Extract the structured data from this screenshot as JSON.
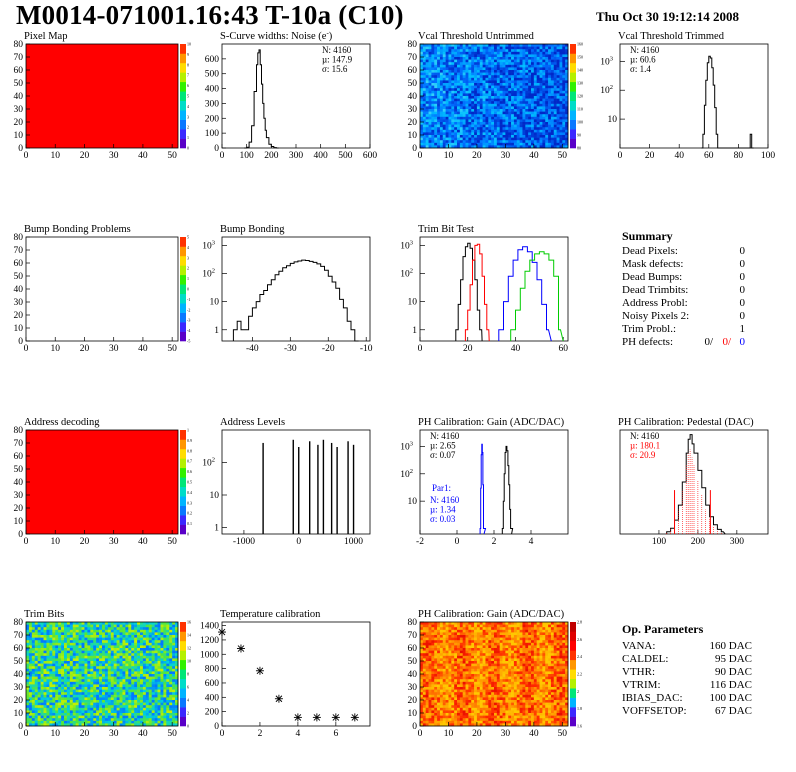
{
  "header": {
    "title": "M0014-071001.16:43 T-10a (C10)",
    "date": "Thu Oct 30 19:12:14 2008"
  },
  "colors": {
    "red": "#ff0000",
    "blue": "#0000ff",
    "green": "#00cc00",
    "black": "#000000"
  },
  "chart_data": [
    {
      "id": "pixel-map",
      "type": "heatmap",
      "title": "Pixel Map",
      "xlim": [
        0,
        52
      ],
      "ylim": [
        0,
        80
      ],
      "xticks": [
        0,
        10,
        20,
        30,
        40,
        50
      ],
      "yticks": [
        0,
        10,
        20,
        30,
        40,
        50,
        60,
        70,
        80
      ],
      "zlim": [
        0,
        10
      ],
      "zticks": [
        "0",
        "1",
        "2",
        "3",
        "4",
        "5",
        "6",
        "7",
        "8",
        "9",
        "10"
      ],
      "fill": "uniform-max"
    },
    {
      "id": "scurve",
      "type": "line",
      "title": "S-Curve widths: Noise (e",
      "title_sup": "-",
      "title_end": ")",
      "xlim": [
        0,
        600
      ],
      "ylim": [
        0,
        700
      ],
      "xticks": [
        0,
        100,
        200,
        300,
        400,
        500,
        600
      ],
      "yticks": [
        0,
        100,
        200,
        300,
        400,
        500,
        600
      ],
      "stats": [
        "N: 4160",
        "µ: 147.9",
        "σ: 15.6"
      ],
      "series": [
        {
          "name": "",
          "x": [
            90,
            100,
            110,
            120,
            130,
            140,
            145,
            150,
            155,
            160,
            165,
            170,
            175,
            180,
            190,
            200,
            210,
            220
          ],
          "y": [
            0,
            5,
            40,
            150,
            380,
            560,
            640,
            660,
            560,
            430,
            300,
            200,
            120,
            70,
            25,
            10,
            3,
            0
          ]
        }
      ]
    },
    {
      "id": "vcal-untrimmed",
      "type": "heatmap",
      "title": "Vcal Threshold Untrimmed",
      "xlim": [
        0,
        52
      ],
      "ylim": [
        0,
        80
      ],
      "xticks": [
        0,
        10,
        20,
        30,
        40,
        50
      ],
      "yticks": [
        0,
        10,
        20,
        30,
        40,
        50,
        60,
        70,
        80
      ],
      "zticks": [
        "80",
        "90",
        "100",
        "110",
        "120",
        "130",
        "140",
        "150",
        "160"
      ],
      "fill": "noise-blue"
    },
    {
      "id": "vcal-trimmed",
      "type": "line",
      "title": "Vcal Threshold Trimmed",
      "xlim": [
        0,
        100
      ],
      "log": true,
      "ylim_exp": [
        0,
        3.6
      ],
      "xticks": [
        0,
        20,
        40,
        60,
        80,
        100
      ],
      "yticks_exp": [
        1,
        2,
        3
      ],
      "stats": [
        "N: 4160",
        "µ: 60.6",
        "σ:  1.4"
      ],
      "series": [
        {
          "name": "",
          "x": [
            55,
            56,
            57,
            58,
            59,
            60,
            61,
            62,
            63,
            64,
            65,
            66,
            88,
            89
          ],
          "y": [
            0.4,
            3,
            30,
            220,
            900,
            1500,
            1300,
            600,
            150,
            25,
            3,
            0.4,
            3,
            0.4
          ]
        }
      ]
    },
    {
      "id": "bump-problems",
      "type": "heatmap",
      "title": "Bump Bonding Problems",
      "xlim": [
        0,
        52
      ],
      "ylim": [
        0,
        80
      ],
      "xticks": [
        0,
        10,
        20,
        30,
        40,
        50
      ],
      "yticks": [
        0,
        10,
        20,
        30,
        40,
        50,
        60,
        70,
        80
      ],
      "zticks": [
        "-5",
        "-4",
        "-3",
        "-2",
        "-1",
        "0",
        "1",
        "2",
        "3",
        "4",
        "5"
      ],
      "fill": "empty"
    },
    {
      "id": "bump-bonding",
      "type": "line",
      "title": "Bump Bonding",
      "xlim": [
        -48,
        -9
      ],
      "log": true,
      "ylim_exp": [
        -0.4,
        3.3
      ],
      "xticks": [
        -40,
        -30,
        -20,
        -10
      ],
      "yticks_exp": [
        0,
        1,
        2,
        3
      ],
      "series": [
        {
          "name": "",
          "x": [
            -45,
            -44,
            -43,
            -42,
            -41,
            -40,
            -39,
            -38,
            -37,
            -36,
            -35,
            -34,
            -33,
            -32,
            -31,
            -30,
            -29,
            -28,
            -27,
            -26,
            -25,
            -24,
            -23,
            -22,
            -21,
            -20,
            -19,
            -18,
            -17,
            -16,
            -15,
            -14,
            -13
          ],
          "y": [
            1,
            2,
            1,
            1,
            3,
            6,
            10,
            18,
            25,
            40,
            60,
            90,
            120,
            160,
            190,
            230,
            260,
            280,
            300,
            290,
            270,
            250,
            220,
            180,
            130,
            80,
            50,
            30,
            12,
            6,
            2,
            1,
            0.3
          ]
        }
      ]
    },
    {
      "id": "trim-bit-test",
      "type": "line",
      "title": "Trim Bit Test",
      "xlim": [
        0,
        62
      ],
      "log": true,
      "ylim_exp": [
        -0.4,
        3.3
      ],
      "xticks": [
        0,
        20,
        40,
        60
      ],
      "yticks_exp": [
        0,
        1,
        2,
        3
      ],
      "series": [
        {
          "name": "",
          "color": "#000000",
          "x": [
            15,
            16,
            17,
            18,
            19,
            20,
            21,
            22,
            23,
            24,
            25
          ],
          "y": [
            1,
            8,
            60,
            400,
            900,
            1200,
            800,
            300,
            60,
            5,
            1
          ]
        },
        {
          "name": "",
          "color": "#ff0000",
          "x": [
            19,
            20,
            21,
            22,
            23,
            24,
            25,
            26,
            27,
            28
          ],
          "y": [
            1,
            5,
            40,
            300,
            1000,
            1100,
            500,
            80,
            8,
            1
          ]
        },
        {
          "name": "",
          "color": "#0000ff",
          "x": [
            33,
            35,
            37,
            39,
            41,
            43,
            45,
            47,
            49,
            51,
            53
          ],
          "y": [
            1,
            10,
            80,
            300,
            700,
            900,
            600,
            250,
            60,
            8,
            1
          ]
        },
        {
          "name": "",
          "color": "#00cc00",
          "x": [
            38,
            40,
            42,
            44,
            46,
            48,
            50,
            52,
            54,
            56,
            58
          ],
          "y": [
            1,
            5,
            30,
            120,
            300,
            500,
            600,
            500,
            300,
            80,
            1
          ]
        }
      ]
    },
    {
      "id": "address-decoding",
      "type": "heatmap",
      "title": "Address decoding",
      "xlim": [
        0,
        52
      ],
      "ylim": [
        0,
        80
      ],
      "xticks": [
        0,
        10,
        20,
        30,
        40,
        50
      ],
      "yticks": [
        0,
        10,
        20,
        30,
        40,
        50,
        60,
        70,
        80
      ],
      "zticks": [
        "0",
        "0.1",
        "0.2",
        "0.3",
        "0.4",
        "0.5",
        "0.6",
        "0.7",
        "0.8",
        "0.9",
        "1"
      ],
      "fill": "uniform-max"
    },
    {
      "id": "address-levels",
      "type": "bar",
      "title": "Address Levels",
      "xlim": [
        -1400,
        1300
      ],
      "log": true,
      "ylim_exp": [
        -0.2,
        3.0
      ],
      "xticks": [
        -1000,
        0,
        1000
      ],
      "yticks_exp": [
        0,
        1,
        2
      ],
      "series": [
        {
          "name": "",
          "x": [
            -650,
            -100,
            0,
            200,
            350,
            450,
            600,
            700,
            900,
            1000
          ],
          "y": [
            400,
            500,
            300,
            450,
            350,
            500,
            400,
            300,
            450,
            350
          ]
        }
      ]
    },
    {
      "id": "ph-gain",
      "type": "line",
      "title": "PH Calibration: Gain (ADC/DAC)",
      "xlim": [
        -2,
        6
      ],
      "log": true,
      "ylim_exp": [
        -0.2,
        3.6
      ],
      "xticks": [
        -2,
        0,
        2,
        4
      ],
      "yticks_exp": [
        1,
        2,
        3
      ],
      "stats": [
        "N: 4160",
        "µ: 2.65",
        "σ: 0.07"
      ],
      "stats2_title": "Par1:",
      "stats2": [
        "N: 4160",
        "µ: 1.34",
        "σ: 0.03"
      ],
      "series": [
        {
          "name": "",
          "color": "#000000",
          "x": [
            2.45,
            2.5,
            2.55,
            2.6,
            2.65,
            2.7,
            2.75,
            2.8,
            2.85,
            2.9
          ],
          "y": [
            1,
            10,
            100,
            600,
            1000,
            700,
            200,
            40,
            5,
            1
          ]
        },
        {
          "name": "",
          "color": "#0000ff",
          "x": [
            1.25,
            1.28,
            1.31,
            1.34,
            1.37,
            1.4,
            1.43
          ],
          "y": [
            1,
            30,
            500,
            1200,
            600,
            40,
            1
          ]
        }
      ]
    },
    {
      "id": "ph-pedestal",
      "type": "line",
      "title": "PH Calibration: Pedestal (DAC)",
      "xlim": [
        0,
        380
      ],
      "ylim": [
        0,
        90
      ],
      "xticks": [
        100,
        200,
        300
      ],
      "stats": [
        "N: 4160",
        "µ: 180.1",
        "σ: 20.9"
      ],
      "series": [
        {
          "name": "",
          "x": [
            120,
            130,
            140,
            150,
            160,
            170,
            175,
            180,
            185,
            190,
            200,
            210,
            220,
            230,
            240,
            250,
            260
          ],
          "y": [
            2,
            5,
            12,
            25,
            45,
            70,
            82,
            86,
            78,
            70,
            55,
            40,
            25,
            15,
            8,
            4,
            2
          ]
        }
      ]
    },
    {
      "id": "trim-bits",
      "type": "heatmap",
      "title": "Trim Bits",
      "xlim": [
        0,
        52
      ],
      "ylim": [
        0,
        80
      ],
      "xticks": [
        0,
        10,
        20,
        30,
        40,
        50
      ],
      "yticks": [
        0,
        10,
        20,
        30,
        40,
        50,
        60,
        70,
        80
      ],
      "zticks": [
        "0",
        "2",
        "4",
        "6",
        "8",
        "10",
        "12",
        "14",
        "16"
      ],
      "fill": "noise-green"
    },
    {
      "id": "temperature",
      "type": "scatter",
      "title": "Temperature calibration",
      "xlim": [
        0,
        7.8
      ],
      "ylim": [
        0,
        1450
      ],
      "xticks": [
        0,
        2,
        4,
        6
      ],
      "yticks": [
        0,
        200,
        400,
        600,
        800,
        1000,
        1200,
        1400
      ],
      "series": [
        {
          "name": "",
          "x": [
            0,
            1,
            2,
            3,
            4,
            5,
            6,
            7
          ],
          "y": [
            1310,
            1080,
            770,
            380,
            120,
            120,
            120,
            120
          ]
        }
      ]
    },
    {
      "id": "ph-gain-map",
      "type": "heatmap",
      "title": "PH Calibration: Gain (ADC/DAC)",
      "xlim": [
        0,
        52
      ],
      "ylim": [
        0,
        80
      ],
      "xticks": [
        0,
        10,
        20,
        30,
        40,
        50
      ],
      "yticks": [
        0,
        10,
        20,
        30,
        40,
        50,
        60,
        70,
        80
      ],
      "zticks": [
        "1.6",
        "1.8",
        "2",
        "2.2",
        "2.4",
        "2.6",
        "2.8"
      ],
      "fill": "noise-red"
    }
  ],
  "summary": {
    "title": "Summary",
    "rows": [
      {
        "label": "Dead Pixels:",
        "value": "0"
      },
      {
        "label": "Mask defects:",
        "value": "0"
      },
      {
        "label": "Dead Bumps:",
        "value": "0"
      },
      {
        "label": "Dead Trimbits:",
        "value": "0"
      },
      {
        "label": "Address Probl:",
        "value": "0"
      },
      {
        "label": "Noisy Pixels 2:",
        "value": "0"
      },
      {
        "label": "Trim Probl.:",
        "value": "1"
      }
    ],
    "ph_label": "PH defects:",
    "ph_values": [
      "0/",
      "0/",
      "0"
    ]
  },
  "parameters": {
    "title": "Op. Parameters",
    "rows": [
      {
        "label": "VANA:",
        "value": "160 DAC"
      },
      {
        "label": "CALDEL:",
        "value": "95 DAC"
      },
      {
        "label": "VTHR:",
        "value": "90 DAC"
      },
      {
        "label": "VTRIM:",
        "value": "116 DAC"
      },
      {
        "label": "IBIAS_DAC:",
        "value": "100 DAC"
      },
      {
        "label": "VOFFSETOP:",
        "value": "67 DAC"
      }
    ]
  }
}
